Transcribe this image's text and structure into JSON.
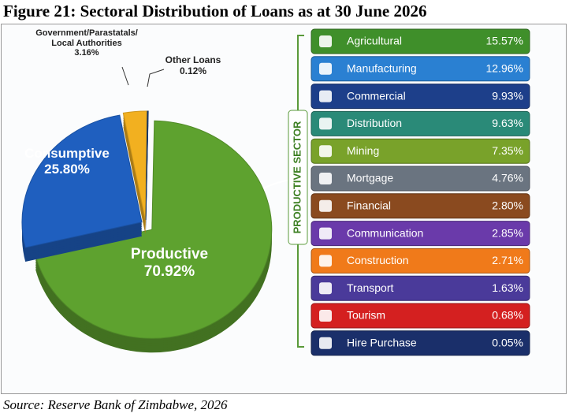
{
  "chart_data": {
    "type": "pie",
    "title": "Figure 21: Sectoral Distribution of Loans as at 30 June 2026",
    "source": "Source: Reserve Bank of Zimbabwe, 2026",
    "categories": [
      "Productive",
      "Consumptive",
      "Government/Parastatals/ Local Authorities",
      "Other Loans"
    ],
    "values": [
      70.92,
      25.8,
      3.16,
      0.12
    ],
    "value_labels": [
      "70.92%",
      "25.80%",
      "3.16%",
      "0.12%"
    ],
    "colors": [
      "#5ea22f",
      "#1f5fbf",
      "#f2b020",
      "#1a3f7a"
    ]
  },
  "breakdown": {
    "label": "PRODUCTIVE SECTOR",
    "rows": [
      {
        "name": "Agricultural",
        "value": "15.57%",
        "color": "#3f8f2a"
      },
      {
        "name": "Manufacturing",
        "value": "12.96%",
        "color": "#2a80d2"
      },
      {
        "name": "Commercial",
        "value": "9.93%",
        "color": "#1d3f8a"
      },
      {
        "name": "Distribution",
        "value": "9.63%",
        "color": "#2a8a78"
      },
      {
        "name": "Mining",
        "value": "7.35%",
        "color": "#79a22a"
      },
      {
        "name": "Mortgage",
        "value": "4.76%",
        "color": "#6a7480"
      },
      {
        "name": "Financial",
        "value": "2.80%",
        "color": "#8a4a1f"
      },
      {
        "name": "Communication",
        "value": "2.85%",
        "color": "#6a3aaa"
      },
      {
        "name": "Construction",
        "value": "2.71%",
        "color": "#f07a1a"
      },
      {
        "name": "Transport",
        "value": "1.63%",
        "color": "#4a3a9a"
      },
      {
        "name": "Tourism",
        "value": "0.68%",
        "color": "#d42020"
      },
      {
        "name": "Hire Purchase",
        "value": "0.05%",
        "color": "#1a2f6a"
      }
    ]
  }
}
